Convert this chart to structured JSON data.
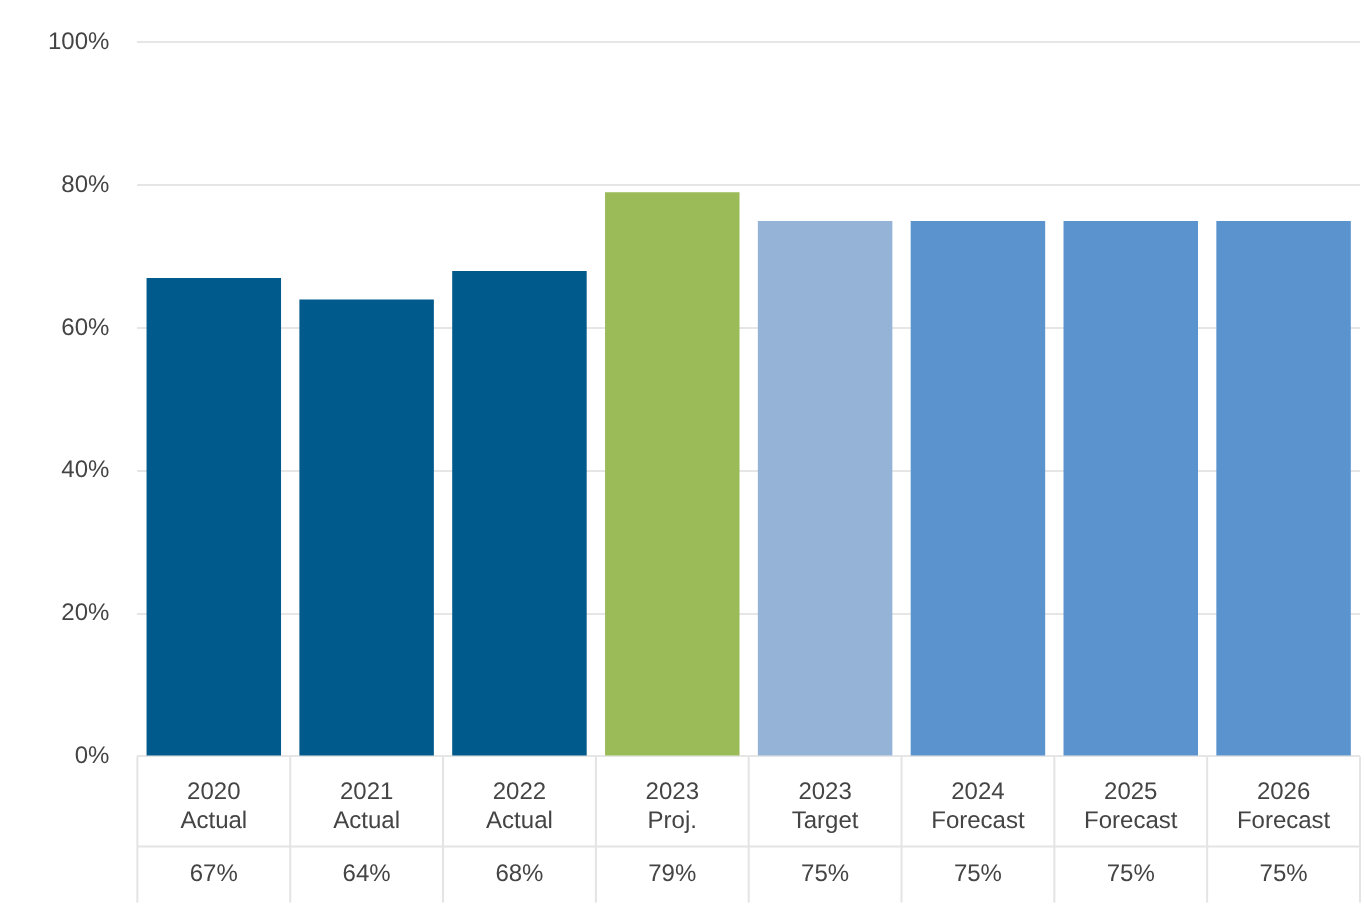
{
  "chart_data": {
    "type": "bar",
    "categories": [
      "2020 Actual",
      "2021 Actual",
      "2022 Actual",
      "2023 Proj.",
      "2023 Target",
      "2024 Forecast",
      "2025 Forecast",
      "2026 Forecast"
    ],
    "values": [
      67,
      64,
      68,
      79,
      75,
      75,
      75,
      75
    ],
    "colors": [
      "#005a8c",
      "#005a8c",
      "#005a8c",
      "#9bbb59",
      "#95b3d7",
      "#5b93cf",
      "#5b93cf",
      "#5b93cf"
    ],
    "value_labels": [
      "67%",
      "64%",
      "68%",
      "79%",
      "75%",
      "75%",
      "75%",
      "75%"
    ],
    "ylim": [
      0,
      100
    ],
    "yticks": [
      {
        "value": 0,
        "label": "0%"
      },
      {
        "value": 20,
        "label": "20%"
      },
      {
        "value": 40,
        "label": "40%"
      },
      {
        "value": 60,
        "label": "60%"
      },
      {
        "value": 80,
        "label": "80%"
      },
      {
        "value": 100,
        "label": "100%"
      }
    ],
    "grid": "y",
    "legend": false
  }
}
